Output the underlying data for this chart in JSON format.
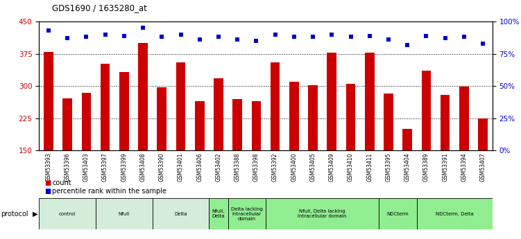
{
  "title": "GDS1690 / 1635280_at",
  "samples": [
    "GSM53393",
    "GSM53396",
    "GSM53403",
    "GSM53397",
    "GSM53399",
    "GSM53408",
    "GSM53390",
    "GSM53401",
    "GSM53406",
    "GSM53402",
    "GSM53388",
    "GSM53398",
    "GSM53392",
    "GSM53400",
    "GSM53405",
    "GSM53409",
    "GSM53410",
    "GSM53411",
    "GSM53395",
    "GSM53404",
    "GSM53389",
    "GSM53391",
    "GSM53394",
    "GSM53407"
  ],
  "counts": [
    380,
    272,
    285,
    352,
    332,
    400,
    297,
    355,
    265,
    318,
    270,
    265,
    355,
    310,
    302,
    378,
    305,
    378,
    283,
    200,
    335,
    280,
    298,
    225
  ],
  "percentiles": [
    93,
    87,
    88,
    90,
    89,
    95,
    88,
    90,
    86,
    88,
    86,
    85,
    90,
    88,
    88,
    90,
    88,
    89,
    86,
    82,
    89,
    87,
    88,
    83
  ],
  "bar_color": "#cc0000",
  "dot_color": "#0000cc",
  "ylim_left": [
    150,
    450
  ],
  "ylim_right": [
    0,
    100
  ],
  "yticks_left": [
    150,
    225,
    300,
    375,
    450
  ],
  "yticks_right": [
    0,
    25,
    50,
    75,
    100
  ],
  "grid_values": [
    225,
    300,
    375
  ],
  "protocol_groups": [
    {
      "label": "control",
      "start": 0,
      "end": 2,
      "color": "#d4edda"
    },
    {
      "label": "Nfull",
      "start": 3,
      "end": 5,
      "color": "#d4edda"
    },
    {
      "label": "Delta",
      "start": 6,
      "end": 8,
      "color": "#d4edda"
    },
    {
      "label": "Nfull,\nDelta",
      "start": 9,
      "end": 9,
      "color": "#90ee90"
    },
    {
      "label": "Delta lacking\nintracellular\ndomain",
      "start": 10,
      "end": 11,
      "color": "#90ee90"
    },
    {
      "label": "Nfull, Delta lacking\nintracellular domain",
      "start": 12,
      "end": 17,
      "color": "#90ee90"
    },
    {
      "label": "NDCterm",
      "start": 18,
      "end": 19,
      "color": "#90ee90"
    },
    {
      "label": "NDCterm, Delta",
      "start": 20,
      "end": 23,
      "color": "#90ee90"
    }
  ],
  "background_color": "#ffffff",
  "bar_width": 0.5
}
